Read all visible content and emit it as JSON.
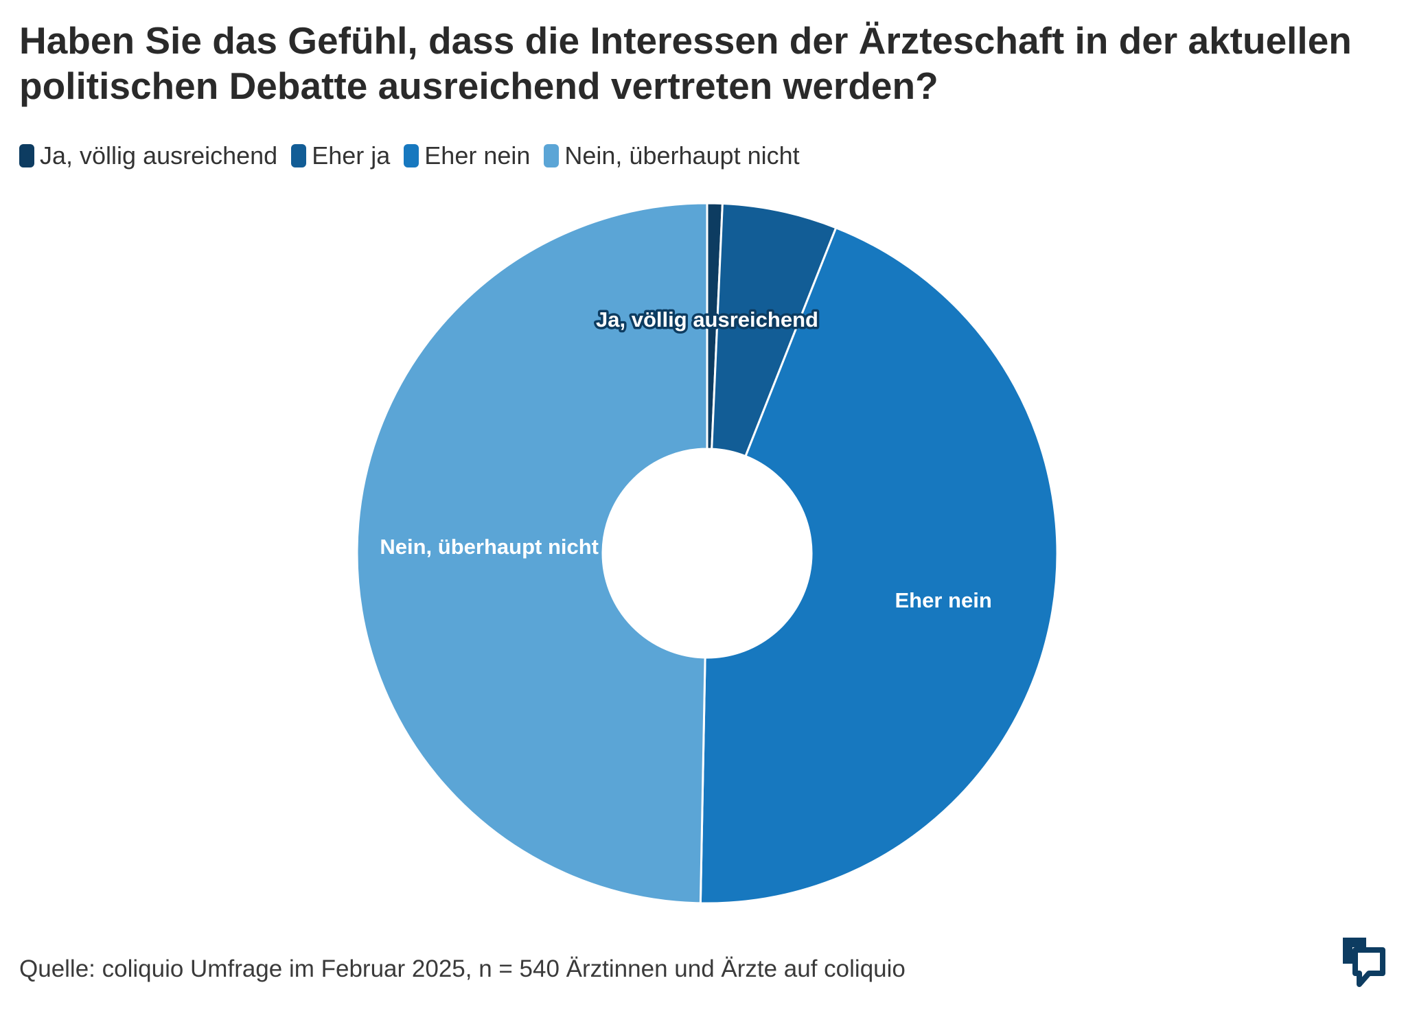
{
  "title": "Haben Sie das Gefühl, dass die Interessen der Ärzteschaft in der aktuellen politischen Debatte ausreichend vertreten werden?",
  "source": "Quelle: coliquio Umfrage im Februar 2025, n = 540 Ärztinnen und Ärzte auf coliquio",
  "logo_icon": "coliquio-logo-icon",
  "chart_data": {
    "type": "pie",
    "donut": true,
    "title": "Haben Sie das Gefühl, dass die Interessen der Ärzteschaft in der aktuellen politischen Debatte ausreichend vertreten werden?",
    "legend_position": "top-left",
    "categories": [
      "Ja, völlig ausreichend",
      "Eher ja",
      "Eher nein",
      "Nein, überhaupt nicht"
    ],
    "values": [
      0.7,
      5.3,
      44.3,
      49.7
    ],
    "colors": [
      "#0d3c61",
      "#125d96",
      "#1778bf",
      "#5ba5d6"
    ],
    "slice_labels": [
      "Ja, völlig ausreichend",
      "",
      "Eher nein",
      "Nein, überhaupt nicht"
    ]
  }
}
